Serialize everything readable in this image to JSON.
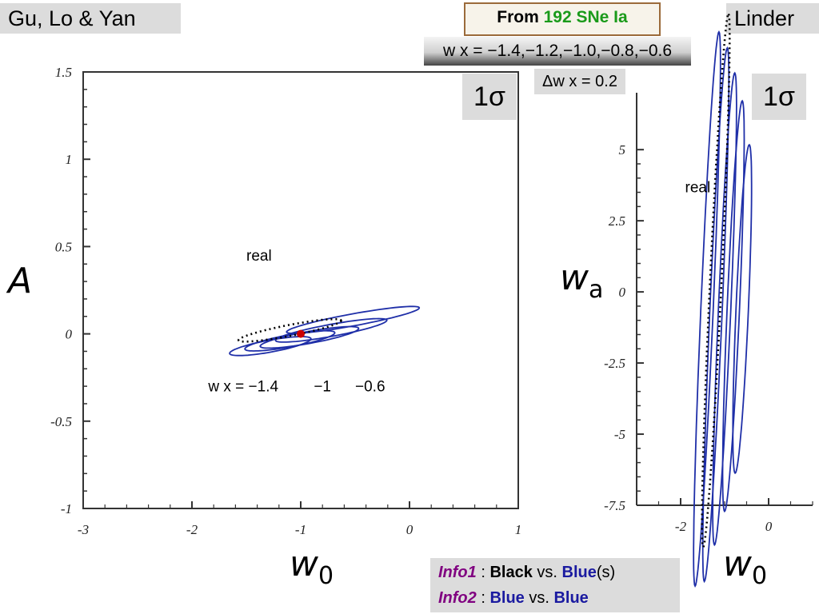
{
  "titles": {
    "left": "Gu, Lo & Yan",
    "right": "Linder",
    "from_prefix": "From",
    "from_data": "192 SNe Ia",
    "wx_list": "w x = −1.4,−1.2,−1.0,−0.8,−0.6",
    "dwx": "Δw x = 0.2",
    "sigma": "1σ"
  },
  "axis_labels": {
    "left_y": "A",
    "right_y_main": "w",
    "right_y_sub": "a",
    "x_main": "w",
    "x_sub": "0"
  },
  "info": {
    "info1_label": "Info1",
    "info1_colon": " : ",
    "info1_black": "Black",
    "info1_vs": " vs. ",
    "info1_blue": "Blue",
    "info1_s": "(s)",
    "info2_label": "Info2",
    "info2_colon": " :    ",
    "info2_blue1": "Blue",
    "info2_vs": " vs. ",
    "info2_blue2": "Blue"
  },
  "colors": {
    "contour_blue": "#1f2fa8",
    "real_black": "#000000",
    "point_red": "#cc0000"
  },
  "chart_data": [
    {
      "type": "line",
      "title": "",
      "xlabel": "w0",
      "ylabel": "A",
      "xlim": [
        -3,
        1
      ],
      "ylim": [
        -1,
        1.5
      ],
      "x_ticks": [
        -3,
        -2,
        -1,
        0,
        1
      ],
      "x_tick_labels": [
        "-3",
        "-2",
        "-1",
        "0",
        "1"
      ],
      "y_ticks": [
        -1,
        -0.5,
        0,
        0.5,
        1,
        1.5
      ],
      "y_tick_labels": [
        "-1",
        "-0.5",
        "0",
        "0.5",
        "1",
        "1.5"
      ],
      "contours": [
        {
          "wx": -1.4,
          "style": "solid",
          "cx": -1.28,
          "cy": -0.07,
          "rx": 0.38,
          "ry": 0.055,
          "angle": -0.18
        },
        {
          "wx": -1.2,
          "style": "solid",
          "cx": -1.1,
          "cy": -0.04,
          "rx": 0.42,
          "ry": 0.055,
          "angle": -0.18
        },
        {
          "wx": -1.0,
          "style": "solid",
          "cx": -0.92,
          "cy": -0.02,
          "rx": 0.46,
          "ry": 0.055,
          "angle": -0.18
        },
        {
          "wx": -0.8,
          "style": "solid",
          "cx": -0.72,
          "cy": 0.02,
          "rx": 0.52,
          "ry": 0.055,
          "angle": -0.18
        },
        {
          "wx": -0.6,
          "style": "solid",
          "cx": -0.52,
          "cy": 0.08,
          "rx": 0.62,
          "ry": 0.055,
          "angle": -0.18
        },
        {
          "name": "real",
          "style": "dotted",
          "cx": -1.1,
          "cy": 0.02,
          "rx": 0.48,
          "ry": 0.05,
          "angle": -0.19
        }
      ],
      "fiducial_point": {
        "x": -1.0,
        "y": 0.0
      },
      "annotations": {
        "real": "real",
        "wx_left": "w x = −1.4",
        "wx_mid": "−1",
        "wx_right": "−0.6"
      }
    },
    {
      "type": "line",
      "title": "",
      "xlabel": "w0",
      "ylabel": "wa",
      "xlim": [
        -3,
        1
      ],
      "ylim": [
        -7.5,
        7
      ],
      "x_ticks": [
        -2,
        0
      ],
      "x_tick_labels": [
        "-2",
        "0"
      ],
      "y_ticks": [
        -7.5,
        -5,
        -2.5,
        0,
        2.5,
        5
      ],
      "y_tick_labels": [
        "-7.5",
        "-5",
        "-2.5",
        "0",
        "2.5",
        "5"
      ],
      "contours": [
        {
          "wx": -1.4,
          "style": "solid",
          "cx": -1.4,
          "cy": -0.6,
          "rx": 2.7,
          "ry": 0.14,
          "angle": -1.47
        },
        {
          "wx": -1.2,
          "style": "solid",
          "cx": -1.2,
          "cy": -0.8,
          "rx": 2.6,
          "ry": 0.14,
          "angle": -1.47
        },
        {
          "wx": -1.0,
          "style": "solid",
          "cx": -1.0,
          "cy": -0.6,
          "rx": 2.3,
          "ry": 0.14,
          "angle": -1.47
        },
        {
          "wx": -0.8,
          "style": "solid",
          "cx": -0.8,
          "cy": -0.5,
          "rx": 2.0,
          "ry": 0.14,
          "angle": -1.47
        },
        {
          "wx": -0.6,
          "style": "solid",
          "cx": -0.6,
          "cy": -0.6,
          "rx": 1.6,
          "ry": 0.14,
          "angle": -1.47
        },
        {
          "name": "real",
          "style": "dotted",
          "cx": -1.2,
          "cy": 0.4,
          "rx": 2.6,
          "ry": 0.13,
          "angle": -1.46
        }
      ],
      "annotations": {
        "real": "real"
      }
    }
  ]
}
